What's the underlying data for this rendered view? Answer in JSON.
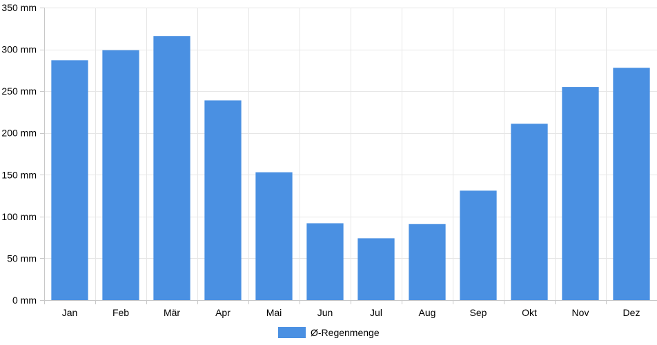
{
  "chart_data": {
    "type": "bar",
    "categories": [
      "Jan",
      "Feb",
      "Mär",
      "Apr",
      "Mai",
      "Jun",
      "Jul",
      "Aug",
      "Sep",
      "Okt",
      "Nov",
      "Dez"
    ],
    "series": [
      {
        "name": "Ø-Regenmenge",
        "color": "#4a90e2",
        "values": [
          287,
          299,
          316,
          239,
          153,
          92,
          74,
          91,
          131,
          211,
          255,
          278
        ]
      }
    ],
    "yticks": [
      0,
      50,
      100,
      150,
      200,
      250,
      300,
      350
    ],
    "ytick_suffix": " mm",
    "ylim": [
      0,
      350
    ],
    "grid": true,
    "legend_position": "bottom"
  }
}
